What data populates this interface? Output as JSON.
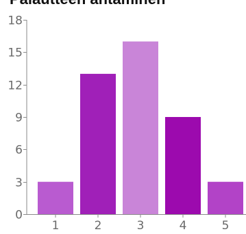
{
  "chart_data": {
    "type": "bar",
    "title": "Palautteen antaminen",
    "categories": [
      "1",
      "2",
      "3",
      "4",
      "5"
    ],
    "values": [
      3,
      13,
      16,
      9,
      3
    ],
    "bar_colors": [
      "#b95bd0",
      "#a020b8",
      "#c985d8",
      "#9c0aae",
      "#b243c7"
    ],
    "axis_color": "#8a8a8a",
    "tick_label_color": "#6a6a6a",
    "xlabel": "",
    "ylabel": "",
    "ylim": [
      0,
      18
    ],
    "yticks": [
      0,
      3,
      6,
      9,
      12,
      15,
      18
    ],
    "grid": false,
    "legend": "none"
  }
}
